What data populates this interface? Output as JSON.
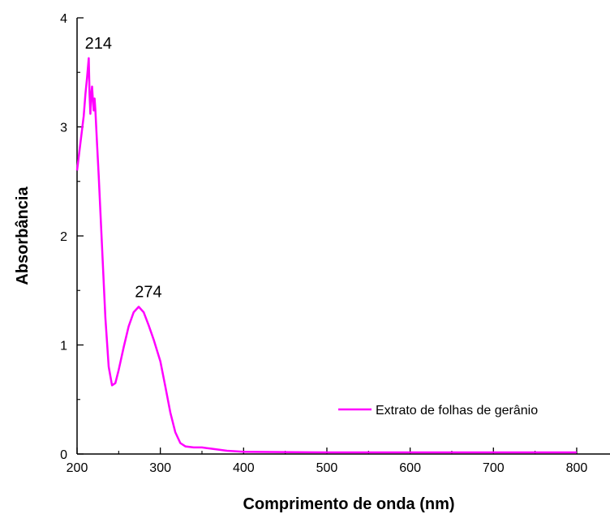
{
  "chart_data": {
    "type": "line",
    "xlabel": "Comprimento de onda (nm)",
    "ylabel": "Absorbância",
    "xlim": [
      200,
      840
    ],
    "ylim": [
      0,
      4
    ],
    "xticks": [
      200,
      300,
      400,
      500,
      600,
      700,
      800
    ],
    "yticks": [
      0,
      1,
      2,
      3,
      4
    ],
    "grid": false,
    "legend_position": "lower-right",
    "series": [
      {
        "name": "Extrato de folhas de gerânio",
        "color": "#ff00ff",
        "x": [
          200,
          204,
          208,
          210,
          212,
          214,
          215,
          216,
          217,
          218,
          219,
          220,
          221,
          222,
          223,
          224,
          226,
          230,
          234,
          238,
          242,
          246,
          250,
          256,
          262,
          268,
          274,
          280,
          286,
          292,
          300,
          306,
          312,
          318,
          324,
          330,
          340,
          350,
          360,
          380,
          400,
          500,
          600,
          700,
          800
        ],
        "y": [
          2.6,
          2.85,
          3.1,
          3.3,
          3.45,
          3.63,
          3.3,
          3.12,
          3.3,
          3.37,
          3.25,
          3.15,
          3.26,
          3.15,
          3.0,
          2.85,
          2.55,
          1.9,
          1.25,
          0.8,
          0.63,
          0.65,
          0.77,
          0.98,
          1.17,
          1.3,
          1.35,
          1.3,
          1.18,
          1.05,
          0.85,
          0.62,
          0.38,
          0.2,
          0.1,
          0.07,
          0.06,
          0.06,
          0.05,
          0.03,
          0.02,
          0.015,
          0.015,
          0.015,
          0.015
        ]
      }
    ],
    "annotations": [
      {
        "text": "214",
        "x": 214,
        "y": 3.63
      },
      {
        "text": "274",
        "x": 274,
        "y": 1.35
      }
    ]
  }
}
